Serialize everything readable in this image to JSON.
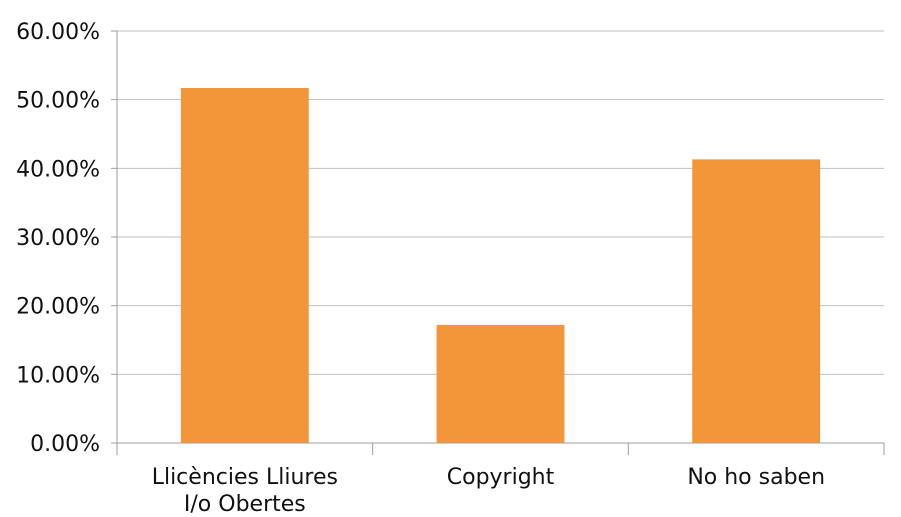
{
  "chart_data": {
    "type": "bar",
    "title": "",
    "xlabel": "",
    "ylabel": "",
    "ylim": [
      0,
      0.6
    ],
    "y_ticks": [
      0,
      0.1,
      0.2,
      0.3,
      0.4,
      0.5,
      0.6
    ],
    "y_tick_labels": [
      "0.00%",
      "10.00%",
      "20.00%",
      "30.00%",
      "40.00%",
      "50.00%",
      "60.00%"
    ],
    "grid": true,
    "legend": "none",
    "categories": [
      [
        "Llicències Lliures",
        "I/o Obertes"
      ],
      [
        "Copyright"
      ],
      [
        "No ho saben"
      ]
    ],
    "values": [
      0.517,
      0.172,
      0.413
    ],
    "colors": {
      "bar": "#F39639",
      "grid": "#BFBFBF",
      "axis": "#9E9E9E"
    }
  }
}
